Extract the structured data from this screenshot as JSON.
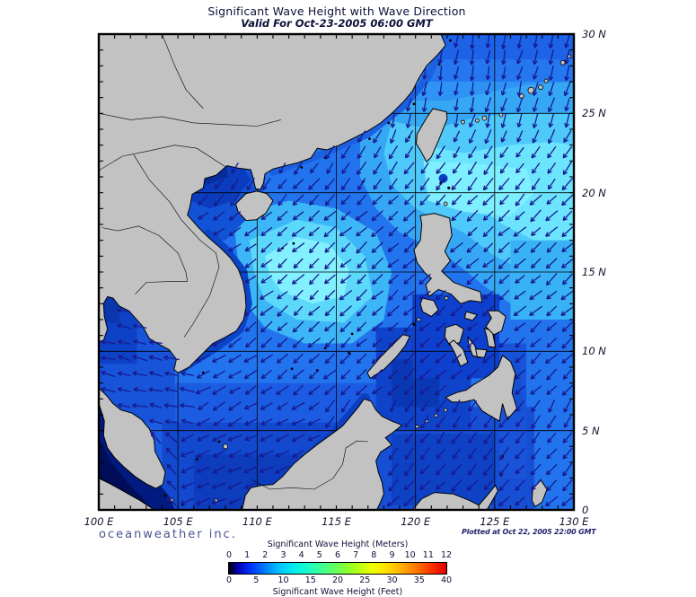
{
  "header": {
    "title": "Significant Wave Height with Wave Direction",
    "subtitle": "Valid For Oct-23-2005 06:00 GMT"
  },
  "map": {
    "lon_labels": [
      "100 E",
      "105 E",
      "110 E",
      "115 E",
      "120 E",
      "125 E",
      "130 E"
    ],
    "lat_labels": [
      "30 N",
      "25 N",
      "20 N",
      "15 N",
      "10 N",
      "5 N",
      "0"
    ],
    "land_color": "#c2c2c2",
    "coast_color": "#000000",
    "grid_color": "#000000",
    "arrow_color": "#181a8f"
  },
  "legend": {
    "meters_label": "Significant Wave Height (Meters)",
    "meters_ticks": [
      "0",
      "1",
      "2",
      "3",
      "4",
      "5",
      "6",
      "7",
      "8",
      "9",
      "10",
      "11",
      "12"
    ],
    "feet_label": "Significant Wave Height (Feet)",
    "feet_ticks": [
      "0",
      "5",
      "10",
      "15",
      "20",
      "25",
      "30",
      "35",
      "40"
    ],
    "gradient_stops": [
      [
        "#000000",
        0
      ],
      [
        "#0000b4",
        4
      ],
      [
        "#0033ff",
        10
      ],
      [
        "#0080ff",
        17
      ],
      [
        "#00c3ff",
        23
      ],
      [
        "#00eeee",
        30
      ],
      [
        "#22ffbb",
        38
      ],
      [
        "#55ff77",
        46
      ],
      [
        "#88ff33",
        54
      ],
      [
        "#bbff11",
        60
      ],
      [
        "#eeff00",
        66
      ],
      [
        "#ffdd00",
        73
      ],
      [
        "#ffaa00",
        80
      ],
      [
        "#ff7700",
        86
      ],
      [
        "#ff3300",
        93
      ],
      [
        "#dd0000",
        100
      ]
    ]
  },
  "footer": {
    "brand": "oceanweather inc.",
    "plotted": "Plotted at Oct 22, 2005 22:00 GMT"
  },
  "chart_data": {
    "type": "heatmap",
    "title": "Significant Wave Height with Wave Direction",
    "valid_time": "Oct-23-2005 06:00 GMT",
    "plotted_time": "Oct 22, 2005 22:00 GMT",
    "region": {
      "lon_min": 100,
      "lon_max": 130,
      "lat_min": 0,
      "lat_max": 30
    },
    "grid_interval_deg": 5,
    "units": [
      "Meters",
      "Feet"
    ],
    "scale_meters": [
      0,
      12
    ],
    "scale_feet": [
      0,
      40
    ],
    "wave_direction": "arrows point toward the southwest (northeast monsoon swell); westward in Gulf of Thailand",
    "regions_wave_height_m": [
      {
        "area": "Luzon Strait / NW Pacific east of Taiwan",
        "height_m": 3.5,
        "color": "#7eefff"
      },
      {
        "area": "Central South China Sea",
        "height_m": 3.0,
        "color": "#82f0ff"
      },
      {
        "area": "East China Sea",
        "height_m": 2.0,
        "color": "#2577f0"
      },
      {
        "area": "Philippine Sea",
        "height_m": 2.5,
        "color": "#38b2f4"
      },
      {
        "area": "Gulf of Tonkin",
        "height_m": 1.0,
        "color": "#0a3cbd"
      },
      {
        "area": "Gulf of Thailand",
        "height_m": 1.5,
        "color": "#1754da"
      },
      {
        "area": "Sulu and Celebes Seas",
        "height_m": 1.2,
        "color": "#0e41c4"
      },
      {
        "area": "Malacca Strait",
        "height_m": 0.2,
        "color": "#000d59"
      }
    ]
  }
}
